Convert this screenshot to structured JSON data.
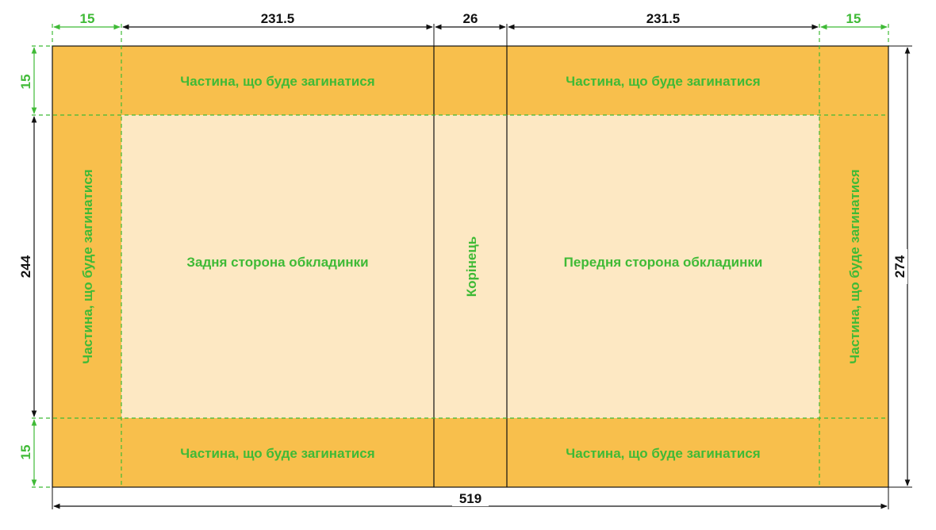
{
  "colors": {
    "bleed": "#f8bf4c",
    "cover": "#fde8c3",
    "guide": "#3fba36",
    "dimension": "#111111"
  },
  "dimensions": {
    "bleed_left_width": "15",
    "back_width": "231.5",
    "spine_width": "26",
    "front_width": "231.5",
    "bleed_right_width": "15",
    "bleed_top_height": "15",
    "cover_height": "244",
    "bleed_bottom_height": "15",
    "total_height": "274",
    "total_width": "519"
  },
  "labels": {
    "fold_top_left": "Частина, що буде загинатися",
    "fold_top_right": "Частина, що буде загинатися",
    "fold_bottom_left": "Частина, що буде загинатися",
    "fold_bottom_right": "Частина, що буде загинатися",
    "fold_left": "Частина, що буде загинатися",
    "fold_right": "Частина, що буде загинатися",
    "back_cover": "Задня сторона обкладинки",
    "front_cover": "Передня сторона обкладинки",
    "spine": "Корінець"
  }
}
